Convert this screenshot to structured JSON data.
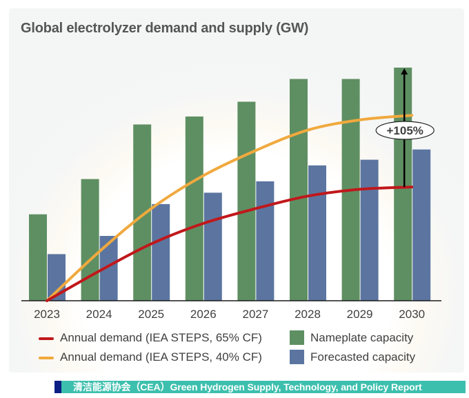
{
  "chart_data": {
    "type": "bar",
    "title": "Global electrolyzer demand and supply (GW)",
    "xlabel": "",
    "ylabel": "",
    "y_axis_shown": false,
    "y_units": "relative (no y-axis labels; values estimated, normalized so 2030 demand at 65% CF = 100)",
    "ylim": [
      0,
      205
    ],
    "grid": false,
    "legend_position": "bottom",
    "categories": [
      "2023",
      "2024",
      "2025",
      "2026",
      "2027",
      "2028",
      "2029",
      "2030"
    ],
    "series": [
      {
        "name": "Nameplate capacity",
        "kind": "bar",
        "color": "#5e8f62",
        "values": [
          76,
          107,
          155,
          162,
          175,
          195,
          195,
          205
        ]
      },
      {
        "name": "Forecasted capacity",
        "kind": "bar",
        "color": "#5b75a0",
        "values": [
          41,
          57,
          85,
          95,
          105,
          119,
          124,
          133
        ]
      },
      {
        "name": "Annual demand (IEA STEPS, 65% CF)",
        "kind": "line",
        "color": "#c0181b",
        "values": [
          0,
          26,
          50,
          68,
          81,
          92,
          98,
          100
        ]
      },
      {
        "name": "Annual demand (IEA STEPS, 40% CF)",
        "kind": "line",
        "color": "#f0a93e",
        "values": [
          0,
          43,
          81,
          110,
          132,
          150,
          159,
          163
        ]
      }
    ],
    "annotations": [
      {
        "text": "+105%",
        "category": "2030",
        "from_series": "Annual demand (IEA STEPS, 65% CF)",
        "to_series": "Nameplate capacity",
        "style": "arrow-up-with-ellipse-label"
      }
    ]
  },
  "legend": {
    "items": [
      {
        "label": "Annual demand (IEA STEPS, 65% CF)",
        "type": "line",
        "color": "#c0181b"
      },
      {
        "label": "Annual demand (IEA STEPS, 40% CF)",
        "type": "line",
        "color": "#f0a93e"
      },
      {
        "label": "Nameplate capacity",
        "type": "box",
        "color": "#5e8f62"
      },
      {
        "label": "Forecasted capacity",
        "type": "box",
        "color": "#5b75a0"
      }
    ]
  },
  "footer": {
    "banner_text": "清洁能源协会（CEA）Green Hydrogen Supply, Technology, and Policy Report",
    "accent_color": "#3dbfae",
    "marker_color": "#0b1f85"
  }
}
